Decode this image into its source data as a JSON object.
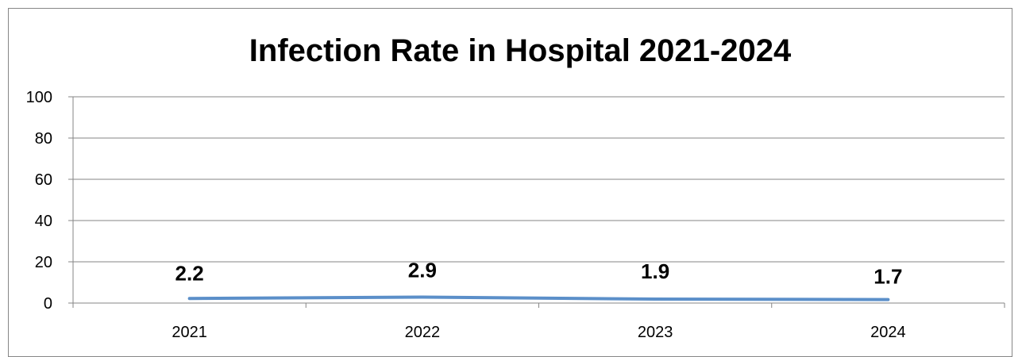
{
  "chart_data": {
    "type": "line",
    "title": "Infection Rate in Hospital 2021-2024",
    "xlabel": "",
    "ylabel": "",
    "categories": [
      "2021",
      "2022",
      "2023",
      "2024"
    ],
    "series": [
      {
        "values": [
          2.2,
          2.9,
          1.9,
          1.7
        ],
        "color": "#5b8fc9"
      }
    ],
    "data_labels": [
      "2.2",
      "2.9",
      "1.9",
      "1.7"
    ],
    "ylim": [
      0,
      100
    ],
    "yticks": [
      "0",
      "20",
      "40",
      "60",
      "80",
      "100"
    ],
    "grid": true,
    "legend": "none"
  }
}
